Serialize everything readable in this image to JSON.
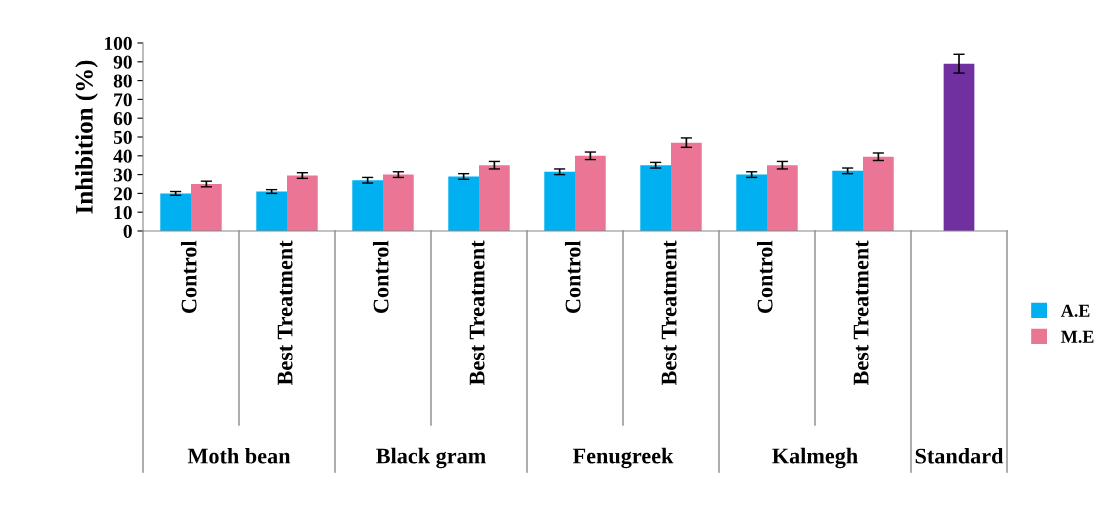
{
  "chart_data": {
    "type": "bar",
    "ylabel": "Inhibition (%)",
    "categories": [
      "Control",
      "Best Treatment",
      "Control",
      "Best Treatment",
      "Control",
      "Best Treatment",
      "Control",
      "Best Treatment",
      null
    ],
    "series": [
      {
        "name": "A.E",
        "color": "#00b0f0",
        "values": [
          20,
          21,
          27,
          29,
          31.5,
          35,
          30,
          32,
          null
        ],
        "errors": [
          1,
          1,
          1.5,
          1.5,
          1.5,
          1.5,
          1.5,
          1.5,
          null
        ]
      },
      {
        "name": "M.E",
        "color": "#ea7595",
        "values": [
          25,
          29.5,
          30,
          35,
          40,
          47,
          35,
          39.5,
          null
        ],
        "errors": [
          1.5,
          1.5,
          1.5,
          2,
          2,
          2.5,
          2,
          2,
          null
        ]
      },
      {
        "color": "#7030a0",
        "values": [
          null,
          null,
          null,
          null,
          null,
          null,
          null,
          null,
          89
        ],
        "errors": [
          null,
          null,
          null,
          null,
          null,
          null,
          null,
          null,
          5
        ]
      }
    ],
    "ylim": [
      0,
      100
    ],
    "yticks": [
      0,
      10,
      20,
      30,
      40,
      50,
      60,
      70,
      80,
      90,
      100
    ],
    "annotations": [
      "Moth bean",
      "Black gram",
      "Fenugreek",
      "Kalmegh",
      "Standard"
    ],
    "legend": "right",
    "grid": false
  }
}
